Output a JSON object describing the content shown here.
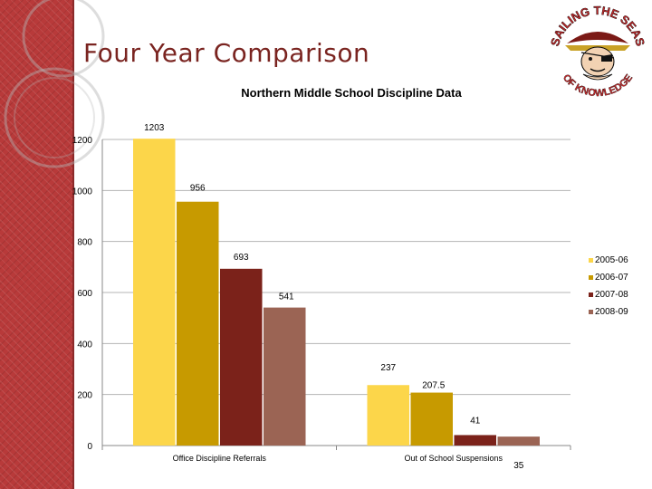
{
  "slide": {
    "title": "Four Year Comparison"
  },
  "logo": {
    "text_top": "SAILING THE SEAS",
    "text_bottom": "OF KNOWLEDGE"
  },
  "colors": {
    "side_band": "#b83a3a",
    "title": "#7a2420",
    "logo_text": "#c0282a",
    "grid": "#b5b5b5"
  },
  "chart_data": {
    "type": "bar",
    "title": "Northern Middle School Discipline Data",
    "xlabel": "",
    "ylabel": "",
    "categories": [
      "Office Discipline Referrals",
      "Out of School Suspensions"
    ],
    "series": [
      {
        "name": "2005-06",
        "values": [
          1203,
          237
        ],
        "labels": [
          "1203",
          "237"
        ],
        "color": "#fcd64a"
      },
      {
        "name": "2006-07",
        "values": [
          956,
          207.5
        ],
        "labels": [
          "956",
          "207.5"
        ],
        "color": "#c79a00"
      },
      {
        "name": "2007-08",
        "values": [
          693,
          41
        ],
        "labels": [
          "693",
          "41"
        ],
        "color": "#7b221a"
      },
      {
        "name": "2008-09",
        "values": [
          541,
          35
        ],
        "labels": [
          "541",
          "35"
        ],
        "color": "#9b6454"
      }
    ],
    "ylim": [
      0,
      1200
    ],
    "yticks": [
      0,
      200,
      400,
      600,
      800,
      1000,
      1200
    ],
    "grid": true,
    "legend_position": "right"
  }
}
